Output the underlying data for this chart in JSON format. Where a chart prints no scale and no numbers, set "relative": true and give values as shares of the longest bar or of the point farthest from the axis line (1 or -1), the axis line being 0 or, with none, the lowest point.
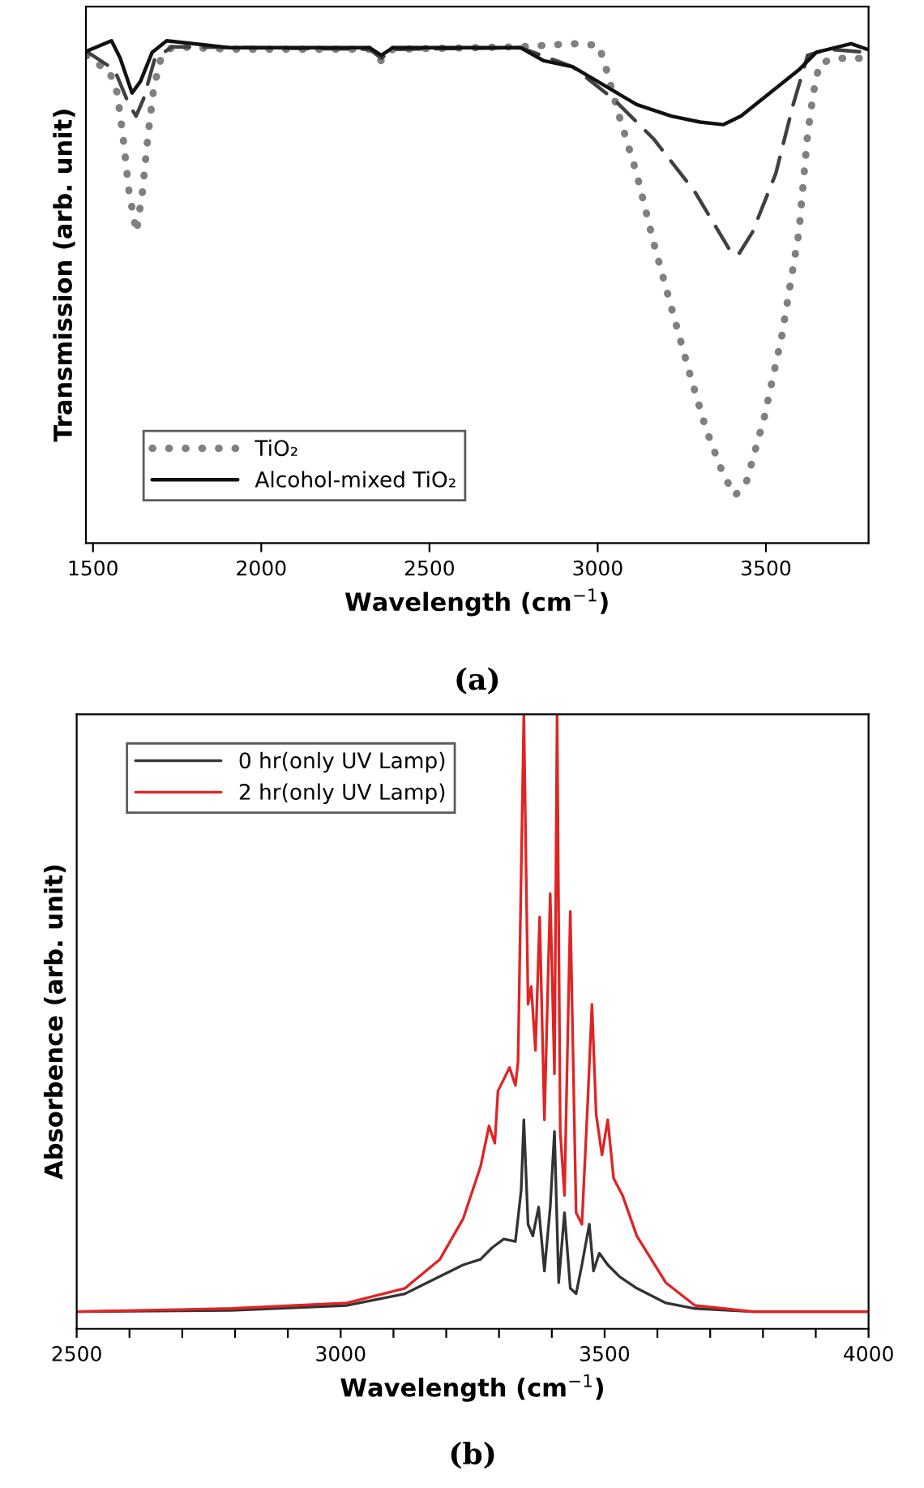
{
  "chart_data": [
    {
      "type": "line",
      "relative": true,
      "xlabel": "Wavelength (cm$^{−1}$)",
      "ylabel": "Transmission (arb. unit)",
      "annotations": [
        "(a)"
      ],
      "legend": "bottom left",
      "grid": false,
      "xlim": [
        1479,
        3805
      ],
      "xticks": [
        1500,
        2000,
        2500,
        3000,
        3500
      ],
      "series": [
        {
          "name": "TiO₂",
          "color": "#808080",
          "line_style": "dotted",
          "x": [
            1480,
            1512,
            1547,
            1572,
            1590,
            1607,
            1629,
            1647,
            1664,
            1681,
            1702,
            1736,
            1909,
            2322,
            2357,
            2391,
            2771,
            2926,
            3003,
            3021,
            3064,
            3116,
            3167,
            3219,
            3271,
            3322,
            3374,
            3409,
            3443,
            3495,
            3547,
            3598,
            3624,
            3641,
            3659,
            3702,
            3753,
            3800
          ],
          "values": [
            0.971,
            0.954,
            0.942,
            0.896,
            0.804,
            0.7,
            0.619,
            0.7,
            0.815,
            0.908,
            0.965,
            0.988,
            0.983,
            0.983,
            0.96,
            0.983,
            0.988,
            0.994,
            0.991,
            0.954,
            0.85,
            0.735,
            0.596,
            0.469,
            0.343,
            0.227,
            0.135,
            0.095,
            0.124,
            0.25,
            0.412,
            0.619,
            0.815,
            0.896,
            0.954,
            0.965,
            0.965,
            0.965
          ]
        },
        {
          "color": "#404040",
          "line_style": "dashed",
          "x": [
            1480,
            1564,
            1607,
            1628,
            1650,
            1684,
            1736,
            2322,
            2357,
            2391,
            2771,
            2857,
            2926,
            3047,
            3167,
            3288,
            3340,
            3391,
            3417,
            3460,
            3529,
            3581,
            3624,
            3684,
            3800
          ],
          "values": [
            0.979,
            0.942,
            0.873,
            0.85,
            0.884,
            0.965,
            0.988,
            0.983,
            0.965,
            0.983,
            0.986,
            0.965,
            0.948,
            0.884,
            0.804,
            0.7,
            0.642,
            0.585,
            0.573,
            0.619,
            0.735,
            0.873,
            0.971,
            0.983,
            0.977
          ]
        },
        {
          "name": "Alcohol-mixed TiO₂",
          "color": "#111111",
          "line_style": "solid",
          "x": [
            1480,
            1555,
            1581,
            1616,
            1641,
            1676,
            1719,
            1909,
            2322,
            2357,
            2391,
            2771,
            2840,
            2926,
            3012,
            3116,
            3219,
            3305,
            3374,
            3426,
            3512,
            3598,
            3650,
            3753,
            3800
          ],
          "values": [
            0.979,
            1,
            0.965,
            0.896,
            0.919,
            0.977,
            1,
            0.986,
            0.986,
            0.971,
            0.986,
            0.986,
            0.96,
            0.948,
            0.914,
            0.873,
            0.85,
            0.838,
            0.833,
            0.85,
            0.896,
            0.942,
            0.977,
            0.994,
            0.983
          ]
        }
      ]
    },
    {
      "type": "line",
      "relative": true,
      "xlabel": "Wavelength (cm$^{−1}$)",
      "ylabel": "Absorbence (arb. unit)",
      "annotations": [
        "(b)"
      ],
      "legend": "top left",
      "grid": false,
      "xlim": [
        2500,
        4000
      ],
      "xticks": [
        2500,
        {
          "value": 2600,
          "label": null
        },
        {
          "value": 2700,
          "label": null
        },
        {
          "value": 2800,
          "label": null
        },
        {
          "value": 2900,
          "label": null
        },
        3000,
        {
          "value": 3100,
          "label": null
        },
        {
          "value": 3200,
          "label": null
        },
        {
          "value": 3300,
          "label": null
        },
        {
          "value": 3400,
          "label": null
        },
        3500,
        {
          "value": 3600,
          "label": null
        },
        {
          "value": 3700,
          "label": null
        },
        {
          "value": 3800,
          "label": null
        },
        {
          "value": 3900,
          "label": null
        },
        4000
      ],
      "series": [
        {
          "name": "0 hr(only UV Lamp)",
          "color": "#333333",
          "line_style": "solid",
          "x": [
            2500,
            2793,
            3012,
            3122,
            3232,
            3265,
            3287,
            3309,
            3331,
            3342,
            3347,
            3355,
            3364,
            3375,
            3386,
            3397,
            3405,
            3413,
            3424,
            3435,
            3446,
            3457,
            3471,
            3479,
            3490,
            3506,
            3528,
            3561,
            3616,
            3671,
            3781,
            4000
          ],
          "values": [
            0.028,
            0.03,
            0.038,
            0.057,
            0.104,
            0.113,
            0.132,
            0.146,
            0.142,
            0.226,
            0.34,
            0.17,
            0.151,
            0.198,
            0.094,
            0.198,
            0.321,
            0.075,
            0.189,
            0.066,
            0.057,
            0.104,
            0.17,
            0.094,
            0.123,
            0.104,
            0.085,
            0.066,
            0.042,
            0.033,
            0.028,
            0.028
          ]
        },
        {
          "name": "2 hr(only UV Lamp)",
          "color": "#e02424",
          "line_style": "solid",
          "x": [
            2500,
            2793,
            3012,
            3122,
            3188,
            3232,
            3265,
            3281,
            3292,
            3298,
            3320,
            3331,
            3336,
            3347,
            3355,
            3361,
            3369,
            3377,
            3386,
            3397,
            3405,
            3410,
            3416,
            3424,
            3435,
            3446,
            3457,
            3468,
            3476,
            3484,
            3495,
            3506,
            3517,
            3534,
            3561,
            3616,
            3671,
            3781,
            4000
          ],
          "values": [
            0.028,
            0.033,
            0.042,
            0.066,
            0.113,
            0.179,
            0.264,
            0.33,
            0.302,
            0.387,
            0.425,
            0.396,
            0.434,
            1,
            0.528,
            0.557,
            0.453,
            0.67,
            0.34,
            0.708,
            0.415,
            1,
            0.321,
            0.217,
            0.679,
            0.189,
            0.17,
            0.368,
            0.528,
            0.349,
            0.283,
            0.34,
            0.245,
            0.217,
            0.151,
            0.075,
            0.038,
            0.028,
            0.028
          ]
        }
      ]
    }
  ]
}
